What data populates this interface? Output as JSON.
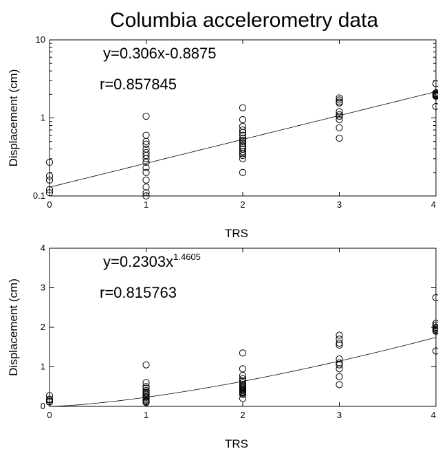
{
  "figure": {
    "title": "Columbia accelerometry data"
  },
  "chart_data": [
    {
      "type": "scatter",
      "xlabel": "TRS",
      "ylabel": "Displacement (cm)",
      "xlim": [
        0,
        4
      ],
      "ylim": [
        0.1,
        10
      ],
      "yscale": "log",
      "x_ticks": [
        "0",
        "1",
        "2",
        "3",
        "4"
      ],
      "y_ticks": [
        "0.1",
        "1",
        "10"
      ],
      "grid": false,
      "equation": "y=0.306x-0.8875",
      "r_text": "r=0.857845",
      "fit": {
        "kind": "exponential",
        "intercept": -0.8875,
        "slope": 0.306
      },
      "points": {
        "x": [
          0,
          0,
          0,
          0,
          0,
          1,
          1,
          1,
          1,
          1,
          1,
          1,
          1,
          1,
          1,
          1,
          1,
          1,
          1,
          1,
          2,
          2,
          2,
          2,
          2,
          2,
          2,
          2,
          2,
          2,
          2,
          2,
          2,
          2,
          2,
          2,
          2,
          2,
          3,
          3,
          3,
          3,
          3,
          3,
          3,
          3,
          3,
          3,
          4,
          4,
          4,
          4,
          4,
          4,
          4,
          4,
          4
        ],
        "y": [
          0.27,
          0.18,
          0.16,
          0.12,
          0.11,
          1.05,
          0.6,
          0.5,
          0.4,
          0.33,
          0.27,
          0.23,
          0.2,
          0.16,
          0.13,
          0.11,
          0.1,
          0.46,
          0.36,
          0.3,
          1.35,
          0.95,
          0.78,
          0.7,
          0.65,
          0.6,
          0.55,
          0.52,
          0.5,
          0.47,
          0.44,
          0.42,
          0.4,
          0.37,
          0.35,
          0.33,
          0.3,
          0.2,
          1.8,
          1.7,
          1.6,
          1.55,
          1.2,
          1.1,
          1.05,
          0.95,
          0.75,
          0.55,
          2.75,
          2.1,
          2.05,
          2.0,
          1.98,
          1.95,
          1.92,
          1.9,
          1.4
        ]
      }
    },
    {
      "type": "scatter",
      "xlabel": "TRS",
      "ylabel": "Displacement (cm)",
      "xlim": [
        0,
        4
      ],
      "ylim": [
        0,
        4
      ],
      "yscale": "linear",
      "x_ticks": [
        "0",
        "1",
        "2",
        "3",
        "4"
      ],
      "y_ticks": [
        "0",
        "1",
        "2",
        "3",
        "4"
      ],
      "grid": false,
      "equation": "y=0.2303x",
      "equation_exponent": "1.4605",
      "r_text": "r=0.815763",
      "fit": {
        "kind": "power",
        "coefficient": 0.2303,
        "exponent": 1.4605
      },
      "points": {
        "x": [
          0,
          0,
          0,
          0,
          0,
          1,
          1,
          1,
          1,
          1,
          1,
          1,
          1,
          1,
          1,
          1,
          1,
          1,
          1,
          1,
          2,
          2,
          2,
          2,
          2,
          2,
          2,
          2,
          2,
          2,
          2,
          2,
          2,
          2,
          2,
          2,
          2,
          2,
          3,
          3,
          3,
          3,
          3,
          3,
          3,
          3,
          3,
          3,
          4,
          4,
          4,
          4,
          4,
          4,
          4,
          4,
          4
        ],
        "y": [
          0.27,
          0.18,
          0.16,
          0.12,
          0.11,
          1.05,
          0.6,
          0.5,
          0.4,
          0.33,
          0.27,
          0.23,
          0.2,
          0.16,
          0.13,
          0.11,
          0.1,
          0.46,
          0.36,
          0.3,
          1.35,
          0.95,
          0.78,
          0.7,
          0.65,
          0.6,
          0.55,
          0.52,
          0.5,
          0.47,
          0.44,
          0.42,
          0.4,
          0.37,
          0.35,
          0.33,
          0.3,
          0.2,
          1.8,
          1.7,
          1.6,
          1.55,
          1.2,
          1.1,
          1.05,
          0.95,
          0.75,
          0.55,
          2.75,
          2.1,
          2.05,
          2.0,
          1.98,
          1.95,
          1.92,
          1.9,
          1.4
        ]
      }
    }
  ]
}
